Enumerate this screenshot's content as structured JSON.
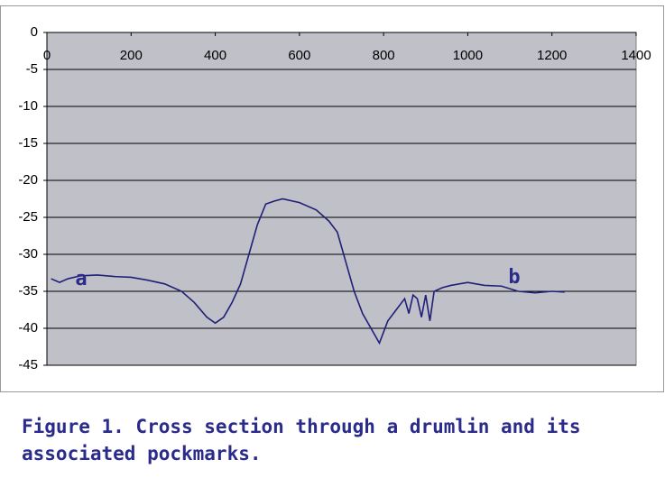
{
  "chart_data": {
    "type": "line",
    "caption": "Figure 1. Cross section through a drumlin and its associated pockmarks.",
    "x": [
      10,
      30,
      50,
      80,
      120,
      160,
      200,
      240,
      280,
      320,
      350,
      380,
      400,
      420,
      440,
      460,
      480,
      500,
      520,
      540,
      560,
      600,
      640,
      670,
      690,
      710,
      730,
      750,
      770,
      790,
      810,
      830,
      850,
      860,
      870,
      880,
      890,
      900,
      910,
      920,
      940,
      960,
      1000,
      1040,
      1080,
      1120,
      1160,
      1200,
      1230
    ],
    "series": [
      {
        "color": "#1f1f78",
        "values": [
          -33.3,
          -33.8,
          -33.3,
          -32.9,
          -32.8,
          -33,
          -33.1,
          -33.5,
          -34,
          -35,
          -36.5,
          -38.5,
          -39.3,
          -38.5,
          -36.5,
          -34,
          -30,
          -26,
          -23.2,
          -22.8,
          -22.5,
          -23,
          -24,
          -25.5,
          -27,
          -31,
          -35,
          -38,
          -40,
          -42,
          -39,
          -37.5,
          -36,
          -38,
          -35.5,
          -36,
          -38.5,
          -35.5,
          -39,
          -35,
          -34.5,
          -34.2,
          -33.8,
          -34.2,
          -34.3,
          -35,
          -35.2,
          -35,
          -35.1
        ]
      }
    ],
    "annotations": [
      "a",
      "b"
    ],
    "xlim": [
      0,
      1400
    ],
    "xticks": [
      0,
      200,
      400,
      600,
      800,
      1000,
      1200,
      1400
    ],
    "ylim": [
      -45,
      0
    ],
    "yticks": [
      0,
      -5,
      -10,
      -15,
      -20,
      -25,
      -30,
      -35,
      -40,
      -45
    ],
    "grid": true,
    "background": "#c0c0c8"
  }
}
